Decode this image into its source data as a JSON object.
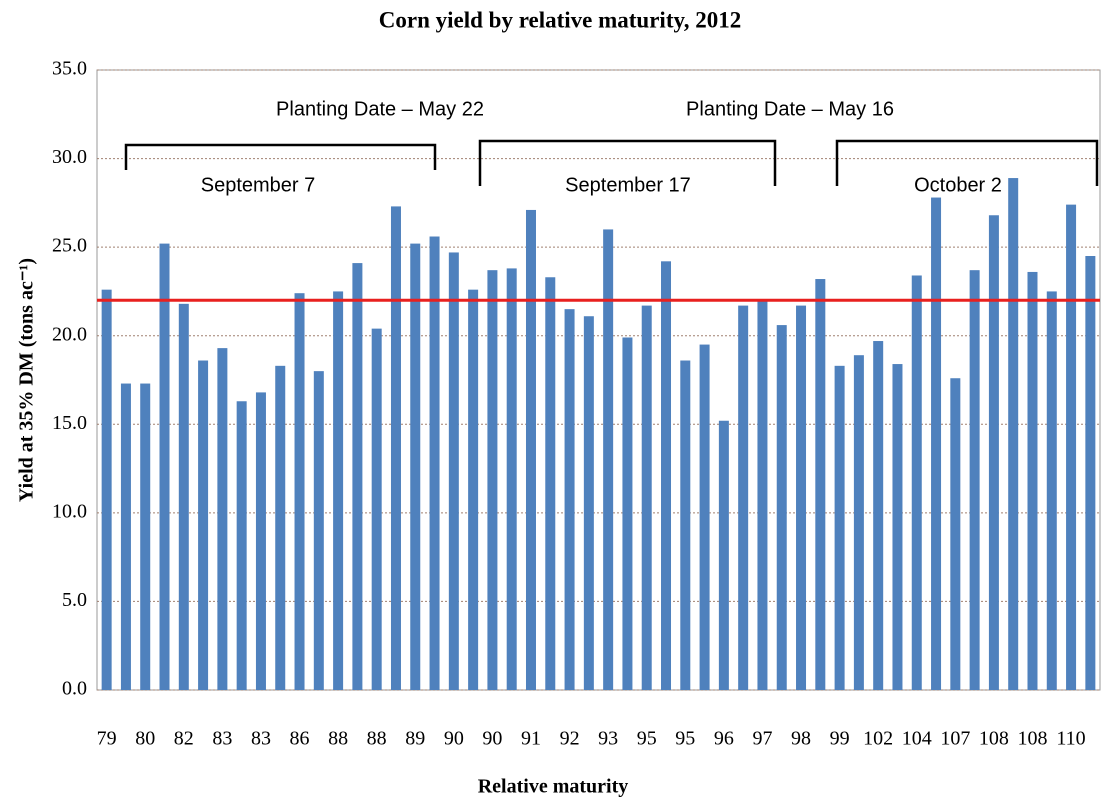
{
  "chart_data": {
    "type": "bar",
    "title": "Corn yield by relative maturity, 2012",
    "x_label": "Relative maturity",
    "y_label": "Yield at 35% DM (tons ac⁻¹)",
    "categories": [
      "79",
      null,
      "80",
      null,
      "82",
      null,
      "83",
      null,
      "83",
      null,
      "86",
      null,
      "88",
      null,
      "88",
      null,
      "89",
      null,
      "90",
      null,
      "90",
      null,
      "91",
      null,
      "92",
      null,
      "93",
      null,
      "95",
      null,
      "95",
      null,
      "96",
      null,
      "97",
      null,
      "98",
      null,
      "99",
      null,
      "102",
      null,
      "104",
      null,
      "107",
      null,
      "108",
      null,
      "108",
      null,
      "110",
      null
    ],
    "values": [
      22.6,
      17.3,
      17.3,
      25.2,
      21.8,
      18.6,
      19.3,
      16.3,
      16.8,
      18.3,
      22.4,
      18.0,
      22.5,
      24.1,
      20.4,
      27.3,
      25.2,
      25.6,
      24.7,
      22.6,
      23.7,
      23.8,
      27.1,
      23.3,
      21.5,
      21.1,
      26.0,
      19.9,
      21.7,
      24.2,
      18.6,
      19.5,
      15.2,
      21.7,
      22.0,
      20.6,
      21.7,
      23.2,
      18.3,
      18.9,
      19.7,
      18.4,
      23.4,
      27.8,
      17.6,
      23.7,
      26.8,
      28.9,
      23.6,
      22.5,
      27.4,
      24.5
    ],
    "color": "#4f81bd",
    "ylim": [
      0,
      35
    ],
    "yticks": [
      {
        "value": 0,
        "label": "0.0"
      },
      {
        "value": 5,
        "label": "5.0"
      },
      {
        "value": 10,
        "label": "10.0"
      },
      {
        "value": 15,
        "label": "15.0"
      },
      {
        "value": 20,
        "label": "20.0"
      },
      {
        "value": 25,
        "label": "25.0"
      },
      {
        "value": 30,
        "label": "30.0"
      },
      {
        "value": 35,
        "label": "35.0"
      }
    ],
    "grid": true,
    "reference_line": {
      "value": 22.0,
      "color": "#e8201f"
    },
    "annotations": [
      "Planting Date – May 22",
      "Planting Date – May 16",
      "September 7",
      "September 17",
      "October 2"
    ]
  }
}
